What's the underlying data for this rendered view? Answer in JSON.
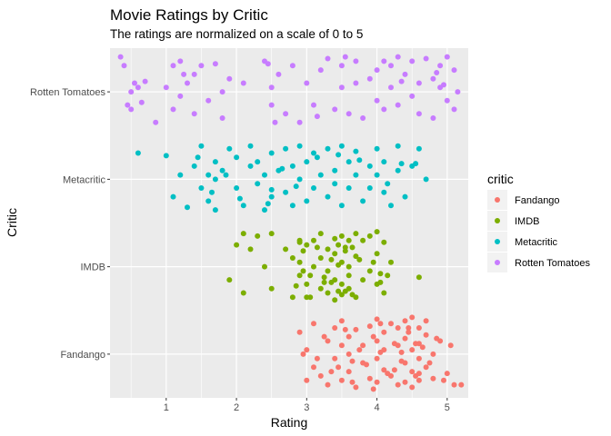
{
  "chart_data": {
    "type": "scatter",
    "title": "Movie Ratings by Critic",
    "subtitle": "The ratings are normalized on a scale of 0 to 5",
    "xlabel": "Rating",
    "ylabel": "Critic",
    "xlim": [
      0.2,
      5.3
    ],
    "x_ticks": [
      1,
      2,
      3,
      4,
      5
    ],
    "categories": [
      "Fandango",
      "IMDB",
      "Metacritic",
      "Rotten Tomatoes"
    ],
    "jitter": "vertical, about ±0.4 category units",
    "grid": true,
    "legend": {
      "title": "critic",
      "position": "right",
      "entries": [
        "Fandango",
        "IMDB",
        "Metacritic",
        "Rotten Tomatoes"
      ]
    },
    "colors": {
      "Fandango": "#F8766D",
      "IMDB": "#7CAE00",
      "Metacritic": "#00BFC4",
      "Rotten Tomatoes": "#C77CFF",
      "panel": "#EBEBEB",
      "grid": "#FFFFFF"
    },
    "series": [
      {
        "name": "Fandango",
        "x": [
          2.9,
          3.0,
          3.0,
          3.1,
          3.1,
          3.2,
          3.3,
          3.3,
          3.4,
          3.4,
          3.5,
          3.5,
          3.5,
          3.6,
          3.6,
          3.6,
          3.7,
          3.7,
          3.8,
          3.8,
          3.9,
          3.9,
          4.0,
          4.0,
          4.0,
          4.0,
          4.1,
          4.1,
          4.1,
          4.2,
          4.2,
          4.3,
          4.3,
          4.3,
          4.4,
          4.4,
          4.4,
          4.5,
          4.5,
          4.5,
          4.5,
          4.6,
          4.6,
          4.6,
          4.6,
          4.7,
          4.7,
          4.7,
          4.8,
          4.8,
          4.9,
          5.0,
          5.1,
          5.2,
          2.95,
          3.15,
          3.25,
          3.45,
          3.55,
          3.65,
          3.75,
          3.85,
          3.95,
          4.05,
          4.15,
          4.25,
          4.35,
          4.45,
          4.55,
          4.65,
          4.75,
          4.85,
          4.95,
          5.05,
          3.35,
          3.95,
          4.45,
          4.55,
          4.25,
          3.65,
          4.05,
          4.35,
          4.6,
          4.4
        ],
        "y": [
          0.25,
          -0.3,
          0.05,
          0.35,
          -0.15,
          -0.25,
          0.15,
          -0.35,
          0.3,
          -0.05,
          0.1,
          -0.3,
          0.38,
          0.2,
          -0.2,
          0.0,
          -0.38,
          0.28,
          0.1,
          -0.1,
          0.32,
          -0.28,
          0.4,
          0.15,
          -0.05,
          -0.32,
          0.25,
          -0.18,
          0.05,
          0.35,
          -0.25,
          0.1,
          -0.35,
          0.3,
          0.38,
          -0.1,
          0.18,
          0.42,
          0.05,
          -0.2,
          -0.38,
          0.3,
          -0.05,
          0.12,
          -0.3,
          0.22,
          -0.15,
          0.38,
          0.0,
          -0.28,
          0.15,
          -0.22,
          -0.35,
          -0.35,
          0.0,
          -0.05,
          0.2,
          -0.15,
          0.28,
          -0.32,
          0.05,
          -0.12,
          0.2,
          0.02,
          -0.22,
          0.12,
          -0.08,
          0.3,
          -0.25,
          0.08,
          -0.1,
          0.18,
          -0.3,
          0.1,
          -0.2,
          -0.4,
          0.25,
          0.12,
          -0.18,
          -0.08,
          0.35,
          0.02,
          -0.22,
          -0.32
        ]
      },
      {
        "name": "IMDB",
        "x": [
          1.9,
          2.0,
          2.1,
          2.1,
          2.2,
          2.3,
          2.4,
          2.5,
          2.5,
          2.7,
          2.8,
          2.8,
          2.9,
          2.9,
          2.9,
          3.0,
          3.0,
          3.0,
          3.1,
          3.1,
          3.2,
          3.2,
          3.2,
          3.3,
          3.3,
          3.3,
          3.4,
          3.4,
          3.4,
          3.4,
          3.5,
          3.5,
          3.5,
          3.5,
          3.6,
          3.6,
          3.6,
          3.6,
          3.7,
          3.7,
          3.7,
          3.8,
          3.8,
          3.9,
          3.9,
          4.0,
          4.0,
          4.0,
          4.1,
          4.1,
          4.2,
          4.6,
          2.85,
          2.95,
          3.05,
          3.15,
          3.25,
          3.35,
          3.45,
          3.55,
          3.65,
          3.75,
          3.95,
          4.05,
          4.15,
          3.35,
          3.45,
          3.55,
          3.25,
          3.65,
          2.95,
          3.05,
          3.45,
          3.55,
          2.9,
          4.05
        ],
        "y": [
          -0.15,
          0.25,
          0.38,
          -0.3,
          0.2,
          0.35,
          0.0,
          -0.25,
          0.38,
          0.2,
          0.1,
          -0.35,
          0.3,
          -0.1,
          0.05,
          0.25,
          -0.2,
          -0.35,
          0.0,
          0.3,
          0.38,
          -0.25,
          0.1,
          0.2,
          -0.05,
          -0.3,
          0.32,
          0.15,
          -0.15,
          -0.38,
          0.35,
          0.05,
          -0.2,
          -0.32,
          0.3,
          0.0,
          -0.1,
          -0.25,
          0.38,
          0.12,
          -0.35,
          0.3,
          -0.15,
          0.35,
          -0.05,
          0.4,
          0.15,
          -0.2,
          0.28,
          -0.3,
          0.05,
          -0.12,
          -0.22,
          0.18,
          -0.1,
          0.22,
          -0.18,
          0.08,
          -0.28,
          0.22,
          -0.32,
          0.08,
          0.05,
          -0.08,
          -0.1,
          -0.18,
          0.25,
          0.18,
          -0.12,
          0.22,
          -0.05,
          -0.35,
          0.02,
          -0.28,
          0.28,
          -0.18
        ]
      },
      {
        "name": "Metacritic",
        "x": [
          0.6,
          1.0,
          1.1,
          1.2,
          1.3,
          1.4,
          1.5,
          1.5,
          1.6,
          1.6,
          1.7,
          1.7,
          1.8,
          1.9,
          2.0,
          2.0,
          2.1,
          2.2,
          2.2,
          2.3,
          2.3,
          2.4,
          2.4,
          2.5,
          2.5,
          2.6,
          2.7,
          2.7,
          2.8,
          2.8,
          2.9,
          2.9,
          3.0,
          3.0,
          3.1,
          3.1,
          3.2,
          3.3,
          3.3,
          3.4,
          3.4,
          3.5,
          3.5,
          3.6,
          3.6,
          3.7,
          3.7,
          3.8,
          3.9,
          3.9,
          4.0,
          4.0,
          4.1,
          4.1,
          4.2,
          4.3,
          4.3,
          4.4,
          4.5,
          4.6,
          4.7,
          1.45,
          1.65,
          1.85,
          2.05,
          2.45,
          2.65,
          2.85,
          3.15,
          3.45,
          3.75,
          4.15,
          4.35,
          4.55,
          2.5,
          1.7
        ],
        "y": [
          0.3,
          0.27,
          -0.2,
          0.05,
          -0.32,
          0.15,
          0.38,
          -0.1,
          -0.25,
          0.05,
          0.2,
          -0.35,
          0.1,
          0.35,
          -0.1,
          0.25,
          -0.3,
          0.38,
          0.15,
          -0.05,
          0.2,
          0.05,
          -0.35,
          0.3,
          -0.2,
          0.1,
          0.35,
          -0.15,
          -0.3,
          0.15,
          0.0,
          0.38,
          0.2,
          -0.25,
          -0.1,
          0.3,
          0.05,
          -0.2,
          0.35,
          0.1,
          -0.05,
          0.38,
          -0.3,
          0.2,
          -0.1,
          0.05,
          0.32,
          -0.25,
          0.15,
          -0.1,
          0.35,
          0.05,
          -0.15,
          0.2,
          -0.3,
          0.1,
          0.38,
          -0.2,
          0.15,
          0.35,
          0.0,
          0.25,
          -0.15,
          0.05,
          -0.22,
          -0.28,
          0.12,
          -0.08,
          0.25,
          0.28,
          0.22,
          -0.05,
          0.18,
          0.18,
          -0.12,
          0.0
        ]
      },
      {
        "name": "Rotten Tomatoes",
        "x": [
          0.35,
          0.4,
          0.45,
          0.5,
          0.55,
          0.6,
          0.65,
          0.85,
          1.0,
          1.1,
          1.1,
          1.2,
          1.2,
          1.3,
          1.4,
          1.4,
          1.5,
          1.6,
          1.7,
          1.8,
          1.8,
          1.9,
          2.1,
          2.4,
          2.5,
          2.5,
          2.6,
          2.7,
          2.8,
          2.9,
          3.0,
          3.1,
          3.2,
          3.3,
          3.4,
          3.5,
          3.5,
          3.6,
          3.7,
          3.7,
          3.8,
          3.9,
          4.0,
          4.0,
          4.1,
          4.1,
          4.2,
          4.2,
          4.3,
          4.3,
          4.4,
          4.5,
          4.5,
          4.6,
          4.6,
          4.7,
          4.8,
          4.8,
          4.9,
          4.9,
          5.0,
          5.0,
          5.1,
          5.1,
          5.15,
          0.5,
          1.25,
          2.55,
          3.55,
          4.35,
          4.95,
          2.45,
          3.15,
          4.85,
          0.7
        ],
        "y": [
          0.4,
          0.3,
          -0.15,
          0.0,
          0.1,
          0.05,
          -0.12,
          -0.35,
          0.05,
          0.3,
          -0.2,
          0.35,
          -0.05,
          0.1,
          0.2,
          -0.25,
          0.3,
          -0.1,
          0.32,
          -0.3,
          0.0,
          0.15,
          0.1,
          0.35,
          -0.15,
          0.05,
          0.2,
          -0.25,
          0.3,
          -0.35,
          0.1,
          -0.15,
          0.25,
          0.38,
          -0.2,
          0.3,
          0.05,
          -0.25,
          0.35,
          0.1,
          -0.3,
          0.15,
          -0.1,
          0.25,
          0.35,
          -0.2,
          0.05,
          0.3,
          -0.15,
          0.4,
          0.2,
          -0.05,
          0.35,
          0.1,
          -0.25,
          0.38,
          0.15,
          -0.3,
          0.3,
          0.05,
          0.4,
          -0.1,
          0.25,
          -0.2,
          0.0,
          -0.2,
          0.2,
          -0.35,
          0.4,
          0.12,
          0.08,
          0.32,
          -0.28,
          0.22,
          0.12
        ]
      }
    ]
  }
}
